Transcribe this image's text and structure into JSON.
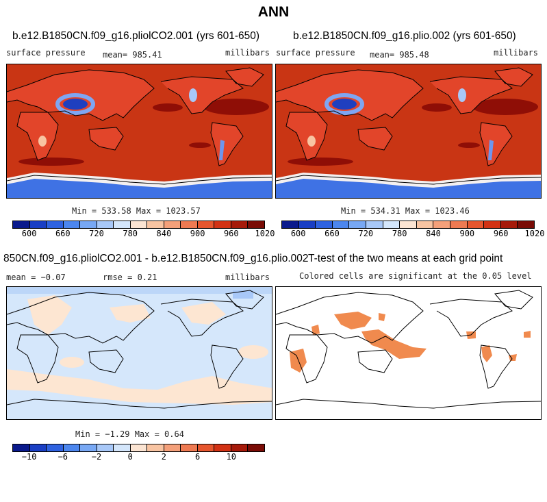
{
  "page": {
    "title": "ANN"
  },
  "panels": {
    "p1": {
      "title": "b.e12.B1850CN.f09_g16.pliolCO2.001 (yrs 601-650)",
      "left": "surface pressure",
      "mid": "mean= 985.41",
      "right": "millibars",
      "minmax": "Min = 533.58 Max = 1023.57"
    },
    "p2": {
      "title": "b.e12.B1850CN.f09_g16.plio.002 (yrs 601-650)",
      "left": "surface pressure",
      "mid": "mean= 985.48",
      "right": "millibars",
      "minmax": "Min = 534.31 Max = 1023.46"
    },
    "p3": {
      "title": "850CN.f09_g16.pliolCO2.001 - b.e12.B1850CN.f09_g16.plio.002",
      "left": "mean =  −0.07",
      "mid": "rmse =   0.21",
      "right": "millibars",
      "minmax": "Min =  −1.29 Max =   0.64"
    },
    "p4": {
      "title": "T-test of the two means at each grid point",
      "subtitle": "Colored cells are significant at the 0.05 level"
    }
  },
  "colorbars": {
    "abs": {
      "colors": [
        "#0a1a8c",
        "#1a3fc4",
        "#2f62e0",
        "#4c86ee",
        "#78a8f4",
        "#a8c8f8",
        "#d4e6fb",
        "#fbe4d2",
        "#f8c4a2",
        "#f4a07a",
        "#ee7a52",
        "#e6562e",
        "#d23214",
        "#a61a0a",
        "#7a0c06"
      ],
      "labels": [
        "600",
        "660",
        "720",
        "780",
        "840",
        "900",
        "960",
        "1020"
      ]
    },
    "diff": {
      "colors": [
        "#0a1a8c",
        "#1a3fc4",
        "#2f62e0",
        "#4c86ee",
        "#78a8f4",
        "#a8c8f8",
        "#d4e6fb",
        "#fbe4d2",
        "#f8c4a2",
        "#f4a07a",
        "#ee7a52",
        "#e6562e",
        "#d23214",
        "#a61a0a",
        "#7a0c06"
      ],
      "labels": [
        "−10",
        "−6",
        "−2",
        "0",
        "2",
        "6",
        "10"
      ]
    }
  },
  "colors": {
    "ocean_red": "#c93514",
    "land_red": "#e2452a",
    "high_dark": "#8f0e06",
    "ice_blue": "#3f72e4",
    "diff_blue": "#d5e7fb",
    "diff_peach": "#fde6d2",
    "sig_orange": "#f08a4e"
  }
}
